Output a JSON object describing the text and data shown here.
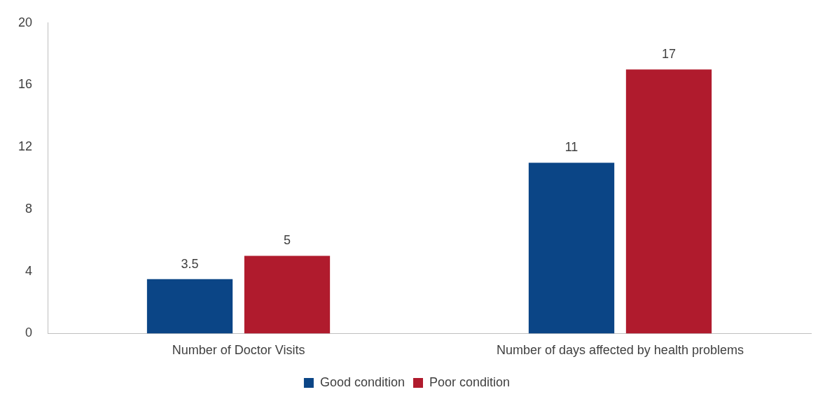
{
  "chart_data": {
    "type": "bar",
    "categories": [
      "Number of Doctor Visits",
      "Number of days affected by health problems"
    ],
    "series": [
      {
        "name": "Good condition",
        "color": "#0b4586",
        "values": [
          3.5,
          11
        ]
      },
      {
        "name": "Poor condition",
        "color": "#b01b2d",
        "values": [
          5,
          17
        ]
      }
    ],
    "ylim": [
      0,
      20
    ],
    "yticks": [
      0,
      4,
      8,
      12,
      16,
      20
    ],
    "grid": false,
    "legend": "bottom",
    "data_labels": true
  }
}
